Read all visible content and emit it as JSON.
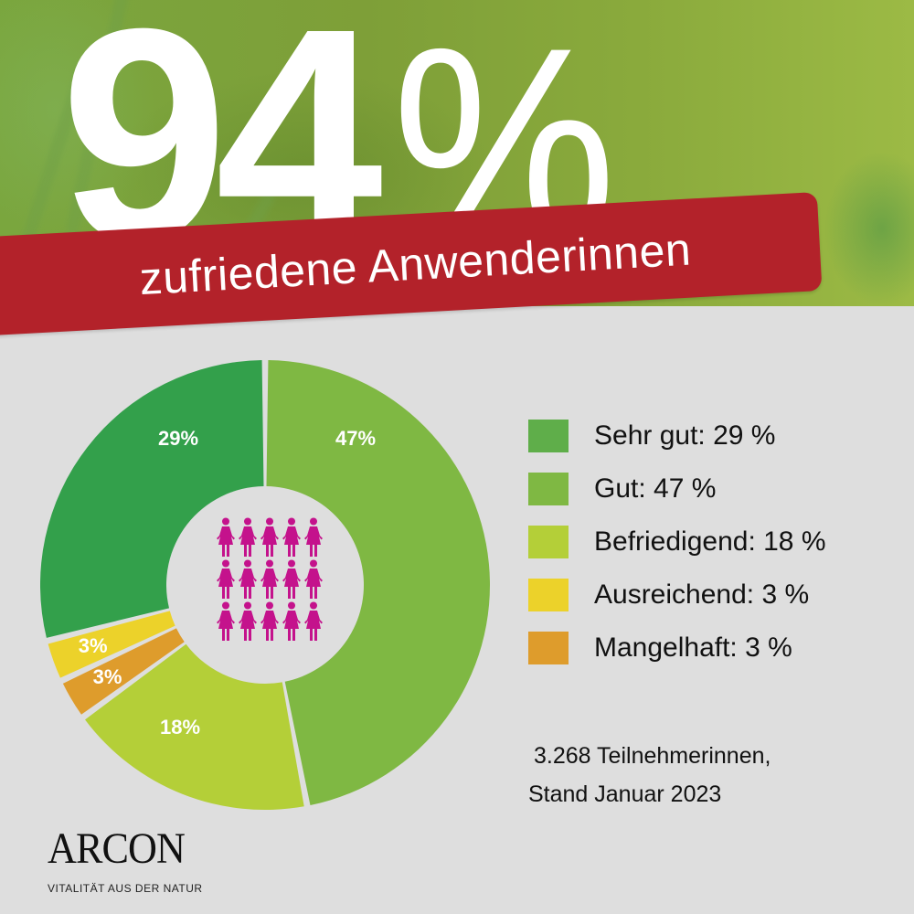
{
  "header": {
    "headline_value": "94",
    "headline_unit": "%",
    "banner_text": "zufriedene Anwenderinnen",
    "banner_color": "#b3222a"
  },
  "chart_data": {
    "type": "pie",
    "subtype": "donut",
    "title": "94 % zufriedene Anwenderinnen",
    "categories": [
      "Gut",
      "Befriedigend",
      "Mangelhaft",
      "Ausreichend",
      "Sehr gut"
    ],
    "values": [
      47,
      18,
      3,
      3,
      29
    ],
    "unit": "%",
    "colors": [
      "#7fb843",
      "#b4cf38",
      "#de9c2c",
      "#ecd22a",
      "#33a04b"
    ],
    "segment_labels": [
      "47%",
      "18%",
      "3%",
      "3%",
      "29%"
    ],
    "start_angle_deg": 0,
    "direction": "clockwise",
    "center_icon": "15 female figures (3 rows x 5)",
    "legend_position": "right",
    "legend": [
      {
        "label": "Sehr gut: 29 %",
        "color": "#5fae4a",
        "value": 29
      },
      {
        "label": "Gut: 47 %",
        "color": "#7fb843",
        "value": 47
      },
      {
        "label": "Befriedigend: 18 %",
        "color": "#b4cf38",
        "value": 18
      },
      {
        "label": "Ausreichend: 3 %",
        "color": "#ecd22a",
        "value": 3
      },
      {
        "label": "Mangelhaft: 3 %",
        "color": "#de9c2c",
        "value": 3
      }
    ],
    "annotation": "3.268 Teilnehmerinnen, Stand Januar 2023"
  },
  "footnote": {
    "line1": "3.268  Teilnehmerinnen,",
    "line2": "Stand Januar 2023"
  },
  "brand": {
    "name": "ARCON",
    "tagline": "VITALITÄT AUS DER NATUR"
  },
  "colors": {
    "background": "#dedede",
    "people_icon": "#c4128c",
    "text": "#111111"
  }
}
